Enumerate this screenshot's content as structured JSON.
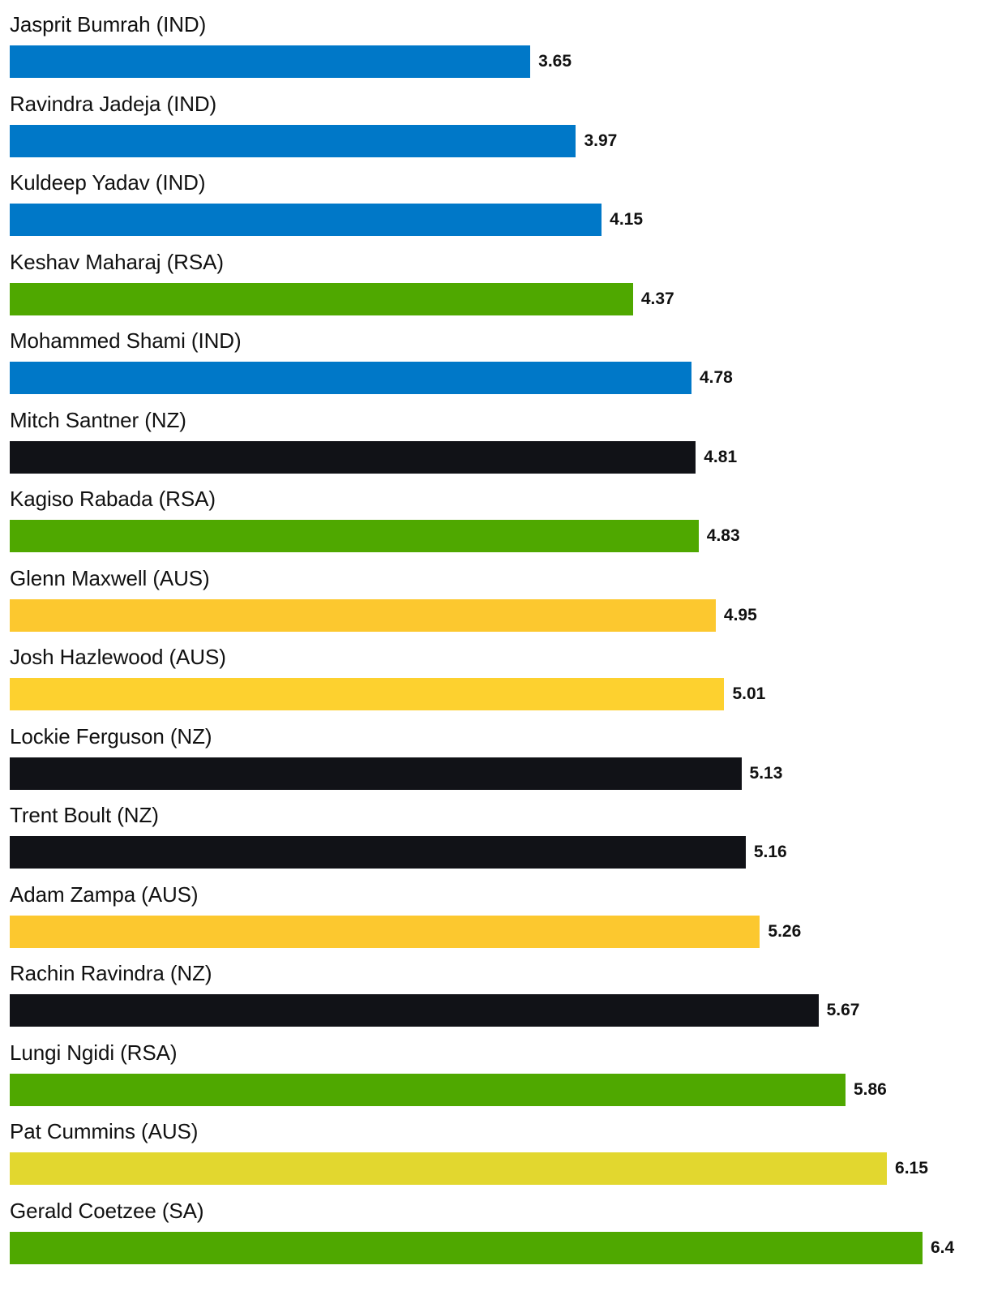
{
  "chart_data": {
    "type": "bar",
    "orientation": "horizontal",
    "categories": [
      "Jasprit Bumrah (IND)",
      "Ravindra Jadeja (IND)",
      "Kuldeep Yadav (IND)",
      "Keshav Maharaj (RSA)",
      "Mohammed Shami (IND)",
      "Mitch Santner (NZ)",
      "Kagiso Rabada (RSA)",
      "Glenn Maxwell (AUS)",
      "Josh Hazlewood (AUS)",
      "Lockie Ferguson (NZ)",
      "Trent Boult (NZ)",
      "Adam Zampa (AUS)",
      "Rachin Ravindra (NZ)",
      "Lungi Ngidi (RSA)",
      "Pat Cummins (AUS)",
      "Gerald Coetzee (SA)"
    ],
    "values": [
      3.65,
      3.97,
      4.15,
      4.37,
      4.78,
      4.81,
      4.83,
      4.95,
      5.01,
      5.13,
      5.16,
      5.26,
      5.67,
      5.86,
      6.15,
      6.4
    ],
    "value_labels": [
      "3.65",
      "3.97",
      "4.15",
      "4.37",
      "4.78",
      "4.81",
      "4.83",
      "4.95",
      "5.01",
      "5.13",
      "5.16",
      "5.26",
      "5.67",
      "5.86",
      "6.15",
      "6.4"
    ],
    "colors": [
      "#0078C8",
      "#0078C8",
      "#0078C8",
      "#4FA800",
      "#0078C8",
      "#111217",
      "#4FA800",
      "#FCC82F",
      "#FDD12F",
      "#111217",
      "#111217",
      "#FCC82F",
      "#111217",
      "#4FA800",
      "#E2D72F",
      "#4FA800"
    ],
    "xlim": [
      0,
      6.4
    ],
    "title": "",
    "xlabel": "",
    "ylabel": "",
    "grid": false,
    "legend": "none"
  }
}
